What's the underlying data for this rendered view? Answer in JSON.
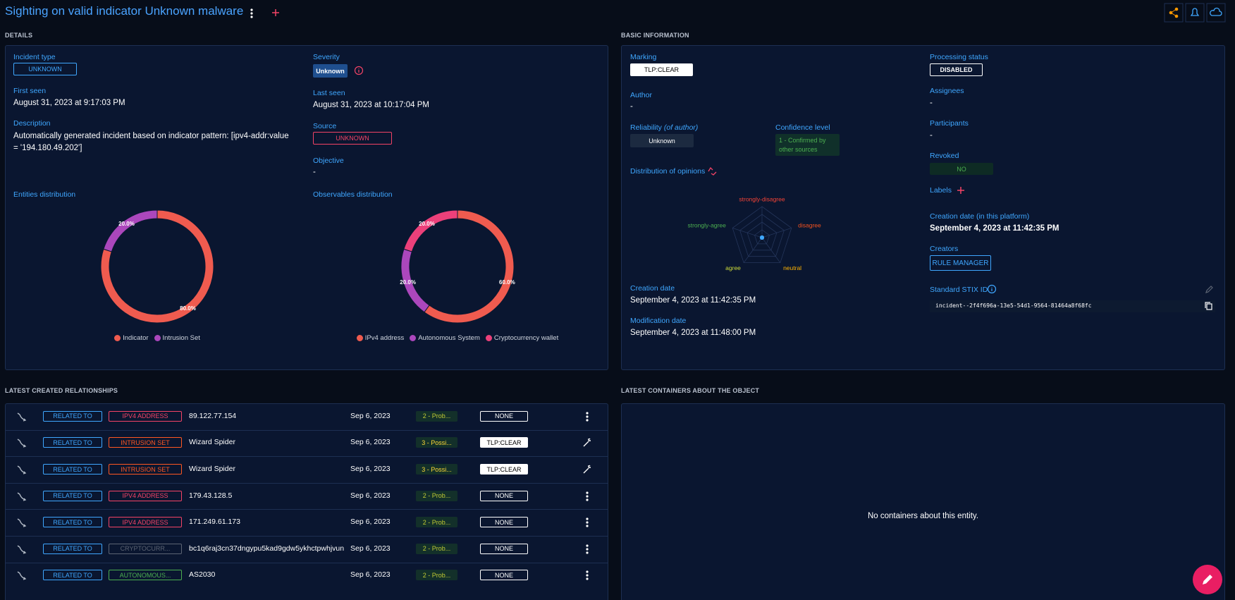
{
  "header": {
    "title": "Sighting on valid indicator Unknown malware"
  },
  "details": {
    "heading": "DETAILS",
    "incident_type": {
      "label": "Incident type",
      "value": "UNKNOWN"
    },
    "severity": {
      "label": "Severity",
      "value": "Unknown"
    },
    "first_seen": {
      "label": "First seen",
      "value": "August 31, 2023 at 9:17:03 PM"
    },
    "last_seen": {
      "label": "Last seen",
      "value": "August 31, 2023 at 10:17:04 PM"
    },
    "description": {
      "label": "Description",
      "value": "Automatically generated incident based on indicator pattern: [ipv4-addr:value = '194.180.49.202']"
    },
    "source": {
      "label": "Source",
      "value": "UNKNOWN"
    },
    "objective": {
      "label": "Objective",
      "value": "-"
    }
  },
  "basic_information": {
    "heading": "BASIC INFORMATION",
    "marking": {
      "label": "Marking",
      "value": "TLP:CLEAR"
    },
    "author": {
      "label": "Author",
      "value": "-"
    },
    "reliability": {
      "label": "Reliability",
      "qualifier": "(of author)",
      "value": "Unknown"
    },
    "confidence_level": {
      "label": "Confidence level",
      "value": "1 - Confirmed by other sources"
    },
    "creation_date": {
      "label": "Creation date",
      "value": "September 4, 2023 at 11:42:35 PM"
    },
    "modification_date": {
      "label": "Modification date",
      "value": "September 4, 2023 at 11:48:00 PM"
    },
    "processing_status": {
      "label": "Processing status",
      "value": "DISABLED"
    },
    "assignees": {
      "label": "Assignees",
      "value": "-"
    },
    "participants": {
      "label": "Participants",
      "value": "-"
    },
    "revoked": {
      "label": "Revoked",
      "value": "NO"
    },
    "labels": {
      "label": "Labels"
    },
    "platform_creation_date": {
      "label": "Creation date (in this platform)",
      "value": "September 4, 2023 at 11:42:35 PM"
    },
    "creators": {
      "label": "Creators",
      "value": "RULE MANAGER"
    },
    "stix_id": {
      "label": "Standard STIX ID",
      "value": "incident--2f4f696a-13e5-54d1-9564-81464a8f68fc"
    }
  },
  "chart_data": [
    {
      "type": "pie",
      "title": "Entities distribution",
      "categories": [
        "Indicator",
        "Intrusion Set"
      ],
      "values": [
        80,
        20
      ],
      "value_labels": [
        "80.0%",
        "20.0%"
      ],
      "colors": [
        "#ef5b4f",
        "#ab47bc"
      ]
    },
    {
      "type": "pie",
      "title": "Observables distribution",
      "categories": [
        "IPv4 address",
        "Autonomous System",
        "Cryptocurrency wallet"
      ],
      "values": [
        60,
        20,
        20
      ],
      "value_labels": [
        "60.0%",
        "20.0%",
        "20.0%"
      ],
      "colors": [
        "#ef5b4f",
        "#ab47bc",
        "#ec407a"
      ]
    },
    {
      "type": "radar",
      "title": "Distribution of opinions",
      "categories": [
        "strongly-disagree",
        "disagree",
        "neutral",
        "agree",
        "strongly-agree"
      ],
      "label_colors": [
        "#f44336",
        "#f4511e",
        "#ffb300",
        "#cddc39",
        "#4caf50"
      ],
      "values": [
        0,
        0,
        0,
        0,
        0
      ],
      "color": "#3fa7ff"
    }
  ],
  "relationships": {
    "heading": "LATEST CREATED RELATIONSHIPS",
    "rows": [
      {
        "relation": "RELATED TO",
        "entity_type": "IPV4 ADDRESS",
        "type_color": "#f44366",
        "name": "89.122.77.154",
        "date": "Sep 6, 2023",
        "confidence": "2 - Prob...",
        "confidence_color": "#c0ca33",
        "marking": "NONE",
        "marking_color": "#0a1630"
      },
      {
        "relation": "RELATED TO",
        "entity_type": "INTRUSION SET",
        "type_color": "#ff5722",
        "name": "Wizard Spider",
        "date": "Sep 6, 2023",
        "confidence": "3 - Possi...",
        "confidence_color": "#fdd835",
        "marking": "TLP:CLEAR",
        "marking_color": "#ffffff"
      },
      {
        "relation": "RELATED TO",
        "entity_type": "INTRUSION SET",
        "type_color": "#ff5722",
        "name": "Wizard Spider",
        "date": "Sep 6, 2023",
        "confidence": "3 - Possi...",
        "confidence_color": "#fdd835",
        "marking": "TLP:CLEAR",
        "marking_color": "#ffffff"
      },
      {
        "relation": "RELATED TO",
        "entity_type": "IPV4 ADDRESS",
        "type_color": "#f44366",
        "name": "179.43.128.5",
        "date": "Sep 6, 2023",
        "confidence": "2 - Prob...",
        "confidence_color": "#c0ca33",
        "marking": "NONE",
        "marking_color": "#0a1630"
      },
      {
        "relation": "RELATED TO",
        "entity_type": "IPV4 ADDRESS",
        "type_color": "#f44366",
        "name": "171.249.61.173",
        "date": "Sep 6, 2023",
        "confidence": "2 - Prob...",
        "confidence_color": "#c0ca33",
        "marking": "NONE",
        "marking_color": "#0a1630"
      },
      {
        "relation": "RELATED TO",
        "entity_type": "CRYPTOCURR...",
        "type_color": "#5c6473",
        "name": "bc1q6raj3cn37dngypu5kad9gdw5ykhctpwhjvun...",
        "date": "Sep 6, 2023",
        "confidence": "2 - Prob...",
        "confidence_color": "#c0ca33",
        "marking": "NONE",
        "marking_color": "#0a1630"
      },
      {
        "relation": "RELATED TO",
        "entity_type": "AUTONOMOUS...",
        "type_color": "#4caf50",
        "name": "AS2030",
        "date": "Sep 6, 2023",
        "confidence": "2 - Prob...",
        "confidence_color": "#c0ca33",
        "marking": "NONE",
        "marking_color": "#0a1630"
      }
    ]
  },
  "containers": {
    "heading": "LATEST CONTAINERS ABOUT THE OBJECT",
    "empty_message": "No containers about this entity."
  }
}
